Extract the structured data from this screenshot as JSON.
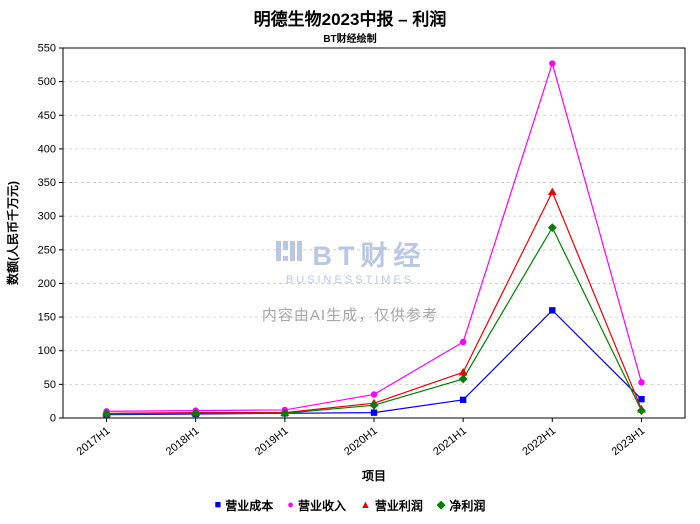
{
  "title": "明德生物2023中报 – 利润",
  "subtitle": "BT财经绘制",
  "watermark": {
    "brand": "BT财经",
    "brand_sub": "BUSINESSTIMES",
    "notice": "内容由AI生成，仅供参考"
  },
  "chart_data": {
    "type": "line",
    "categories": [
      "2017H1",
      "2018H1",
      "2019H1",
      "2020H1",
      "2021H1",
      "2022H1",
      "2023H1"
    ],
    "series": [
      {
        "name": "营业成本",
        "marker": "square",
        "color": "#0000ee",
        "values": [
          5,
          6,
          7,
          8,
          27,
          160,
          28
        ]
      },
      {
        "name": "营业收入",
        "marker": "circle",
        "color": "#ff00ff",
        "values": [
          10,
          11,
          12,
          35,
          113,
          527,
          53
        ]
      },
      {
        "name": "营业利润",
        "marker": "triangle",
        "color": "#ee0000",
        "values": [
          7,
          8,
          8,
          22,
          68,
          336,
          13
        ]
      },
      {
        "name": "净利润",
        "marker": "diamond",
        "color": "#008000",
        "values": [
          6,
          7,
          7,
          19,
          58,
          283,
          11
        ]
      }
    ],
    "xlabel": "项目",
    "ylabel": "数额(人民币千万元)",
    "ylim": [
      0,
      550
    ],
    "ytick_step": 50,
    "grid": true,
    "legend_position": "bottom"
  }
}
